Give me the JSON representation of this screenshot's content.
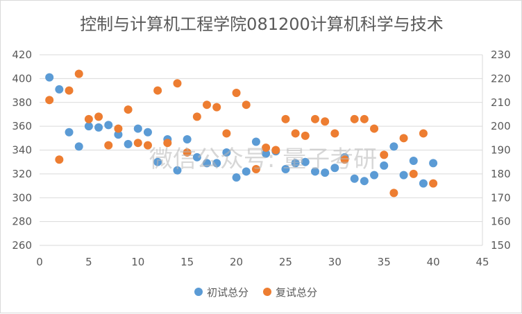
{
  "chart_data": {
    "type": "scatter",
    "title": "控制与计算机工程学院081200计算机科学与技术",
    "x_ticks": [
      "0",
      "5",
      "10",
      "15",
      "20",
      "25",
      "30",
      "35",
      "40",
      "45"
    ],
    "xlim": [
      0,
      45
    ],
    "y_left_ticks": [
      "260",
      "280",
      "300",
      "320",
      "340",
      "360",
      "380",
      "400",
      "420"
    ],
    "ylim_left": [
      260,
      420
    ],
    "y_right_ticks": [
      "150",
      "160",
      "170",
      "180",
      "190",
      "200",
      "210",
      "220",
      "230"
    ],
    "ylim_right": [
      150,
      230
    ],
    "grid": "horizontal",
    "legend_position": "bottom",
    "series": [
      {
        "name": "初试总分",
        "axis": "left",
        "color": "#5b9bd5",
        "points": [
          [
            1,
            401
          ],
          [
            2,
            391
          ],
          [
            3,
            355
          ],
          [
            4,
            343
          ],
          [
            5,
            360
          ],
          [
            6,
            359
          ],
          [
            7,
            361
          ],
          [
            8,
            353
          ],
          [
            9,
            345
          ],
          [
            10,
            358
          ],
          [
            11,
            355
          ],
          [
            12,
            330
          ],
          [
            13,
            349
          ],
          [
            14,
            323
          ],
          [
            15,
            349
          ],
          [
            16,
            334
          ],
          [
            17,
            329
          ],
          [
            18,
            329
          ],
          [
            19,
            338
          ],
          [
            20,
            317
          ],
          [
            21,
            322
          ],
          [
            22,
            347
          ],
          [
            23,
            337
          ],
          [
            24,
            339
          ],
          [
            25,
            324
          ],
          [
            26,
            329
          ],
          [
            27,
            330
          ],
          [
            28,
            322
          ],
          [
            29,
            321
          ],
          [
            30,
            325
          ],
          [
            31,
            334
          ],
          [
            32,
            316
          ],
          [
            33,
            314
          ],
          [
            34,
            319
          ],
          [
            35,
            327
          ],
          [
            36,
            343
          ],
          [
            37,
            319
          ],
          [
            38,
            331
          ],
          [
            39,
            312
          ],
          [
            40,
            329
          ]
        ]
      },
      {
        "name": "复试总分",
        "axis": "right",
        "color": "#ed7d31",
        "points": [
          [
            1,
            211
          ],
          [
            2,
            186
          ],
          [
            3,
            215
          ],
          [
            4,
            222
          ],
          [
            5,
            203
          ],
          [
            6,
            204
          ],
          [
            7,
            192
          ],
          [
            8,
            199
          ],
          [
            9,
            207
          ],
          [
            10,
            193
          ],
          [
            11,
            192
          ],
          [
            12,
            215
          ],
          [
            13,
            193
          ],
          [
            14,
            218
          ],
          [
            15,
            189
          ],
          [
            16,
            204
          ],
          [
            17,
            209
          ],
          [
            18,
            208
          ],
          [
            19,
            197
          ],
          [
            20,
            214
          ],
          [
            21,
            209
          ],
          [
            22,
            182
          ],
          [
            23,
            191
          ],
          [
            24,
            190
          ],
          [
            25,
            203
          ],
          [
            26,
            197
          ],
          [
            27,
            196
          ],
          [
            28,
            203
          ],
          [
            29,
            202
          ],
          [
            30,
            197
          ],
          [
            31,
            186
          ],
          [
            32,
            203
          ],
          [
            33,
            203
          ],
          [
            34,
            199
          ],
          [
            35,
            188
          ],
          [
            36,
            172
          ],
          [
            37,
            195
          ],
          [
            38,
            180
          ],
          [
            39,
            197
          ],
          [
            40,
            176
          ]
        ]
      }
    ],
    "annotations": [
      "微信公众号: 量子考研"
    ]
  }
}
